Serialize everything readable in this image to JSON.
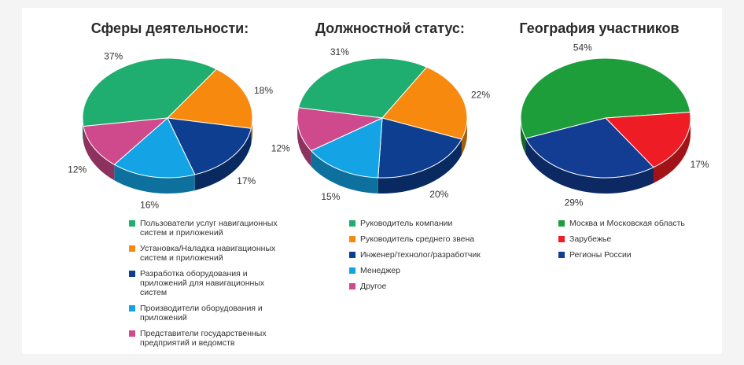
{
  "chart_data": [
    {
      "type": "pie",
      "title": "Сферы деятельности:",
      "slices": [
        {
          "label": "Пользователи услуг навигационных систем и приложений",
          "value": 37,
          "display": "37%",
          "color": "#1fae6f"
        },
        {
          "label": "Установка/Наладка навигационных систем и приложений",
          "value": 18,
          "display": "18%",
          "color": "#f7890f"
        },
        {
          "label": "Разработка оборудования и приложений для навигационных систем",
          "value": 17,
          "display": "17%",
          "color": "#0d3e8f"
        },
        {
          "label": "Производители оборудования и приложений",
          "value": 16,
          "display": "16%",
          "color": "#14a4e6"
        },
        {
          "label": "Представители государственных предприятий и ведомств",
          "value": 12,
          "display": "12%",
          "color": "#cf4a8c"
        }
      ],
      "legend_position": "bottom"
    },
    {
      "type": "pie",
      "title": "Должностной статус:",
      "slices": [
        {
          "label": "Руководитель компании",
          "value": 31,
          "display": "31%",
          "color": "#1fae6f"
        },
        {
          "label": "Руководитель среднего звена",
          "value": 22,
          "display": "22%",
          "color": "#f7890f"
        },
        {
          "label": "Инженер/технолог/разработчик",
          "value": 20,
          "display": "20%",
          "color": "#0d3e8f"
        },
        {
          "label": "Менеджер",
          "value": 15,
          "display": "15%",
          "color": "#14a4e6"
        },
        {
          "label": "Другое",
          "value": 12,
          "display": "12%",
          "color": "#cf4a8c"
        }
      ],
      "legend_position": "bottom"
    },
    {
      "type": "pie",
      "title": "География участников",
      "slices": [
        {
          "label": "Москва и Московская область",
          "value": 54,
          "display": "54%",
          "color": "#1e9e3a"
        },
        {
          "label": "Зарубежье",
          "value": 17,
          "display": "17%",
          "color": "#ee1c24"
        },
        {
          "label": "Регионы России",
          "value": 29,
          "display": "29%",
          "color": "#123d92"
        }
      ],
      "legend_position": "bottom"
    }
  ]
}
